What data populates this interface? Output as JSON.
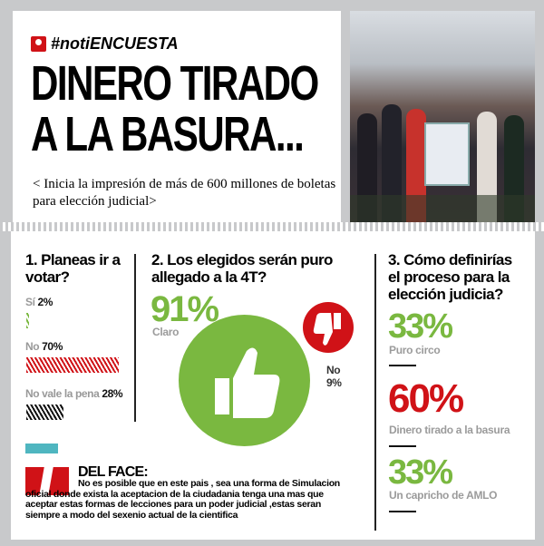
{
  "header": {
    "tag": "#notiENCUESTA",
    "headline_line1": "DINERO TIRADO",
    "headline_line2": "A LA BASURA...",
    "subtitle": "< Inicia la impresión de más de 600 millones de boletas para elección judicial>"
  },
  "q1": {
    "title": "1. Planeas ir a votar?",
    "options": [
      {
        "label": "Sí",
        "pct": "2%",
        "value": 2
      },
      {
        "label": "No",
        "pct": "70%",
        "value": 70
      },
      {
        "label": "No vale la pena",
        "pct": "28%",
        "value": 28
      }
    ]
  },
  "q2": {
    "title": "2. Los elegidos serán puro allegado a la 4T?",
    "yes_pct": "91%",
    "yes_label": "Claro",
    "no_label": "No",
    "no_pct": "9%"
  },
  "q3": {
    "title": "3. Cómo definirías el proceso para la elección judicia?",
    "answers": [
      {
        "pct": "33%",
        "label": "Puro circo"
      },
      {
        "pct": "60%",
        "label": "Dinero tirado a la basura"
      },
      {
        "pct": "33%",
        "label": "Un capricho de AMLO"
      }
    ]
  },
  "face": {
    "title": "DEL FACE:",
    "text": "No es posible que en este pais , sea una forma de Simulacion oficial donde exista la aceptacion de la ciudadania tenga una mas que aceptar estas formas de lecciones para un poder judicial ,estas seran siempre a modo del sexenio actual de la cientifica"
  },
  "colors": {
    "green": "#7ab840",
    "red": "#d01217",
    "teal": "#4fb6c0"
  }
}
